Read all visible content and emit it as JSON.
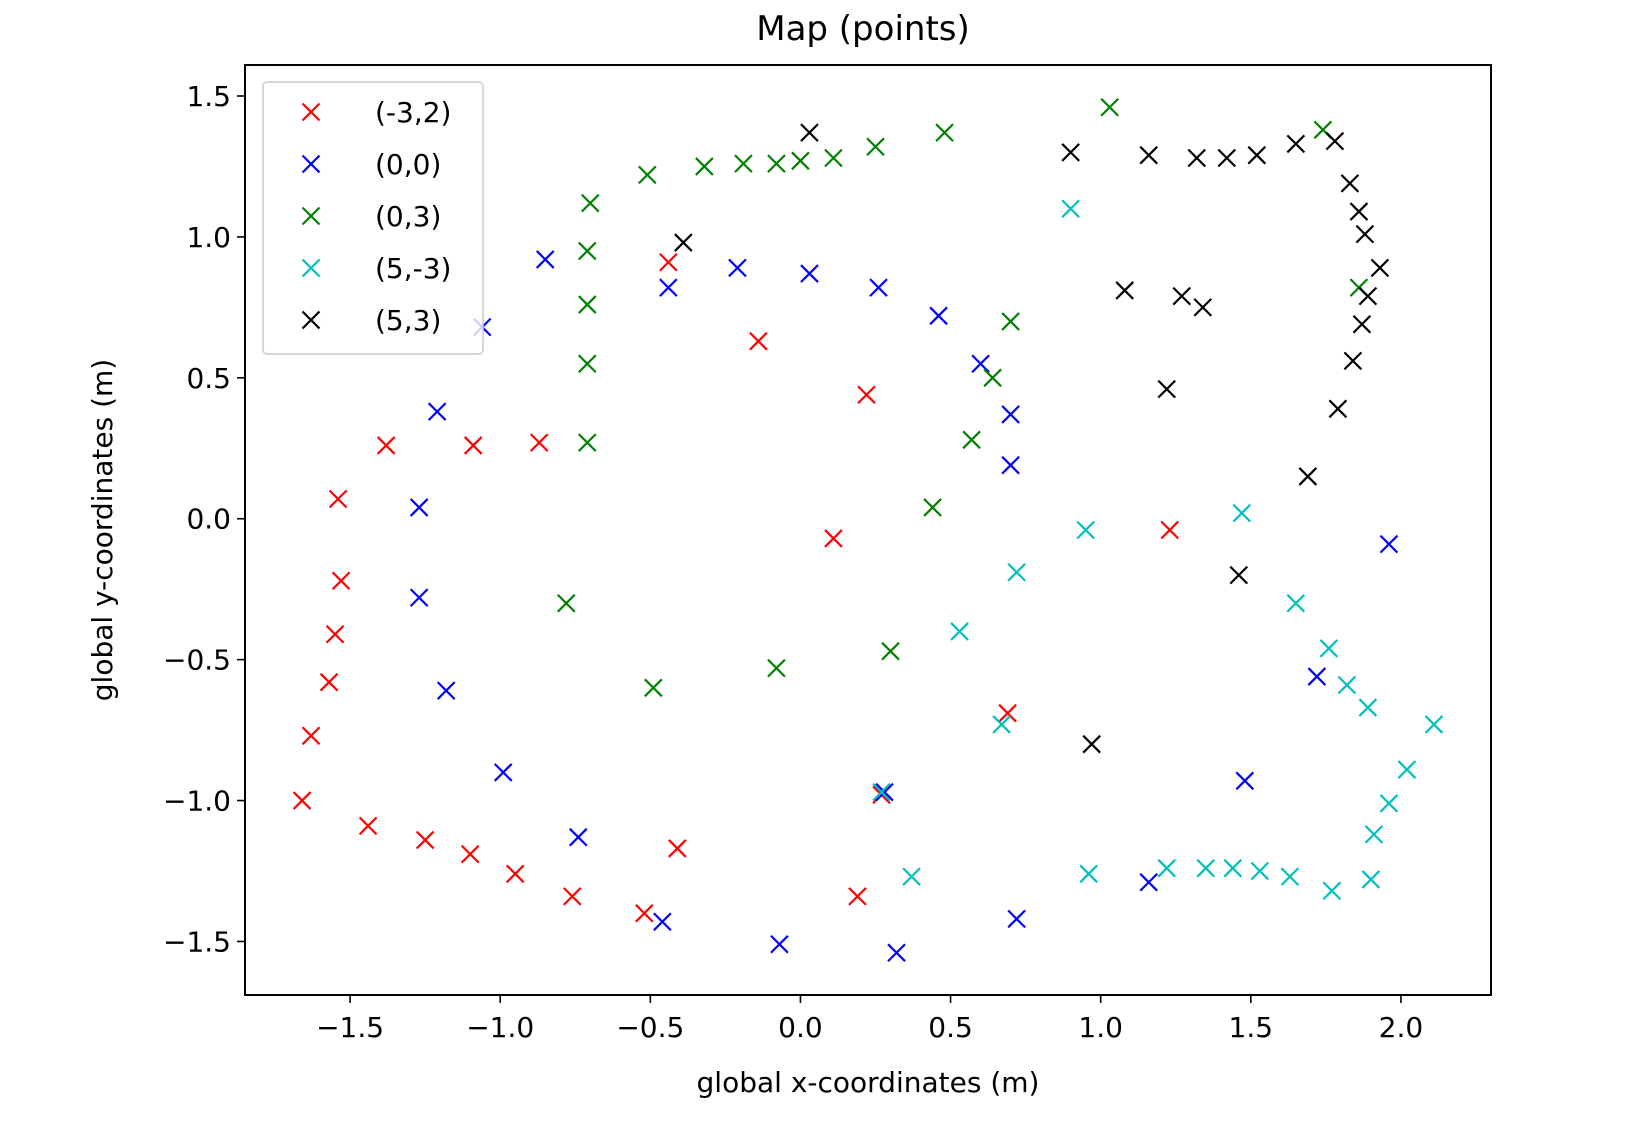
{
  "chart_data": {
    "type": "scatter",
    "title": "Map (points)",
    "xlabel": "global x-coordinates (m)",
    "ylabel": "global y-coordinates (m)",
    "xlim": [
      -1.85,
      2.3
    ],
    "ylim": [
      -1.69,
      1.61
    ],
    "xticks": [
      -1.5,
      -1.0,
      -0.5,
      0.0,
      0.5,
      1.0,
      1.5,
      2.0
    ],
    "xtick_labels": [
      "−1.5",
      "−1.0",
      "−0.5",
      "0.0",
      "0.5",
      "1.0",
      "1.5",
      "2.0"
    ],
    "yticks": [
      -1.5,
      -1.0,
      -0.5,
      0.0,
      0.5,
      1.0,
      1.5
    ],
    "ytick_labels": [
      "−1.5",
      "−1.0",
      "−0.5",
      "0.0",
      "0.5",
      "1.0",
      "1.5"
    ],
    "marker": "x",
    "grid": false,
    "legend": "upper-left",
    "series": [
      {
        "name": "(-3,2)",
        "color": "#ff0000",
        "points": [
          [
            -0.44,
            0.91
          ],
          [
            -0.14,
            0.63
          ],
          [
            0.22,
            0.44
          ],
          [
            0.11,
            -0.07
          ],
          [
            -0.87,
            0.27
          ],
          [
            -1.09,
            0.26
          ],
          [
            -1.38,
            0.26
          ],
          [
            -1.54,
            0.07
          ],
          [
            -1.53,
            -0.22
          ],
          [
            -1.55,
            -0.41
          ],
          [
            -1.57,
            -0.58
          ],
          [
            -1.63,
            -0.77
          ],
          [
            -1.66,
            -1.0
          ],
          [
            -1.44,
            -1.09
          ],
          [
            -1.25,
            -1.14
          ],
          [
            -1.1,
            -1.19
          ],
          [
            -0.95,
            -1.26
          ],
          [
            -0.76,
            -1.34
          ],
          [
            -0.52,
            -1.4
          ],
          [
            -0.41,
            -1.17
          ],
          [
            0.19,
            -1.34
          ],
          [
            0.27,
            -0.98
          ],
          [
            0.69,
            -0.69
          ],
          [
            1.23,
            -0.04
          ]
        ]
      },
      {
        "name": "(0,0)",
        "color": "#0000ff",
        "points": [
          [
            -1.06,
            0.68
          ],
          [
            -0.85,
            0.92
          ],
          [
            -0.44,
            0.82
          ],
          [
            -0.21,
            0.89
          ],
          [
            0.03,
            0.87
          ],
          [
            0.26,
            0.82
          ],
          [
            0.46,
            0.72
          ],
          [
            0.6,
            0.55
          ],
          [
            0.7,
            0.37
          ],
          [
            0.7,
            0.19
          ],
          [
            -1.21,
            0.38
          ],
          [
            -1.27,
            0.04
          ],
          [
            -1.27,
            -0.28
          ],
          [
            -1.18,
            -0.61
          ],
          [
            -0.99,
            -0.9
          ],
          [
            -0.74,
            -1.13
          ],
          [
            -0.46,
            -1.43
          ],
          [
            -0.07,
            -1.51
          ],
          [
            0.32,
            -1.54
          ],
          [
            0.72,
            -1.42
          ],
          [
            1.16,
            -1.29
          ],
          [
            1.48,
            -0.93
          ],
          [
            1.72,
            -0.56
          ],
          [
            1.96,
            -0.09
          ],
          [
            0.28,
            -0.97
          ]
        ]
      },
      {
        "name": "(0,3)",
        "color": "#008000",
        "points": [
          [
            -0.71,
            0.27
          ],
          [
            -0.71,
            0.55
          ],
          [
            -0.71,
            0.76
          ],
          [
            -0.71,
            0.95
          ],
          [
            -0.7,
            1.12
          ],
          [
            -0.51,
            1.22
          ],
          [
            -0.32,
            1.25
          ],
          [
            -0.19,
            1.26
          ],
          [
            -0.08,
            1.26
          ],
          [
            0.0,
            1.27
          ],
          [
            0.11,
            1.28
          ],
          [
            0.25,
            1.32
          ],
          [
            0.48,
            1.37
          ],
          [
            1.03,
            1.46
          ],
          [
            1.74,
            1.38
          ],
          [
            1.86,
            0.82
          ],
          [
            0.7,
            0.7
          ],
          [
            0.64,
            0.5
          ],
          [
            0.57,
            0.28
          ],
          [
            0.44,
            0.04
          ],
          [
            -0.78,
            -0.3
          ],
          [
            -0.49,
            -0.6
          ],
          [
            -0.08,
            -0.53
          ],
          [
            0.3,
            -0.47
          ]
        ]
      },
      {
        "name": "(5,-3)",
        "color": "#00bfbf",
        "points": [
          [
            0.9,
            1.1
          ],
          [
            0.95,
            -0.04
          ],
          [
            1.47,
            0.02
          ],
          [
            0.72,
            -0.19
          ],
          [
            0.53,
            -0.4
          ],
          [
            0.67,
            -0.73
          ],
          [
            0.27,
            -0.97
          ],
          [
            0.37,
            -1.27
          ],
          [
            0.96,
            -1.26
          ],
          [
            1.22,
            -1.24
          ],
          [
            1.35,
            -1.24
          ],
          [
            1.44,
            -1.24
          ],
          [
            1.53,
            -1.25
          ],
          [
            1.63,
            -1.27
          ],
          [
            1.77,
            -1.32
          ],
          [
            1.9,
            -1.28
          ],
          [
            1.91,
            -1.12
          ],
          [
            1.96,
            -1.01
          ],
          [
            2.02,
            -0.89
          ],
          [
            2.11,
            -0.73
          ],
          [
            1.89,
            -0.67
          ],
          [
            1.82,
            -0.59
          ],
          [
            1.76,
            -0.46
          ],
          [
            1.65,
            -0.3
          ]
        ]
      },
      {
        "name": "(5,3)",
        "color": "#000000",
        "points": [
          [
            0.03,
            1.37
          ],
          [
            -0.39,
            0.98
          ],
          [
            0.9,
            1.3
          ],
          [
            1.16,
            1.29
          ],
          [
            1.32,
            1.28
          ],
          [
            1.42,
            1.28
          ],
          [
            1.52,
            1.29
          ],
          [
            1.65,
            1.33
          ],
          [
            1.78,
            1.34
          ],
          [
            1.83,
            1.19
          ],
          [
            1.86,
            1.09
          ],
          [
            1.88,
            1.01
          ],
          [
            1.93,
            0.89
          ],
          [
            1.89,
            0.79
          ],
          [
            1.87,
            0.69
          ],
          [
            1.84,
            0.56
          ],
          [
            1.79,
            0.39
          ],
          [
            1.69,
            0.15
          ],
          [
            1.08,
            0.81
          ],
          [
            1.27,
            0.79
          ],
          [
            1.34,
            0.75
          ],
          [
            1.22,
            0.46
          ],
          [
            1.46,
            -0.2
          ],
          [
            0.97,
            -0.8
          ]
        ]
      }
    ]
  }
}
